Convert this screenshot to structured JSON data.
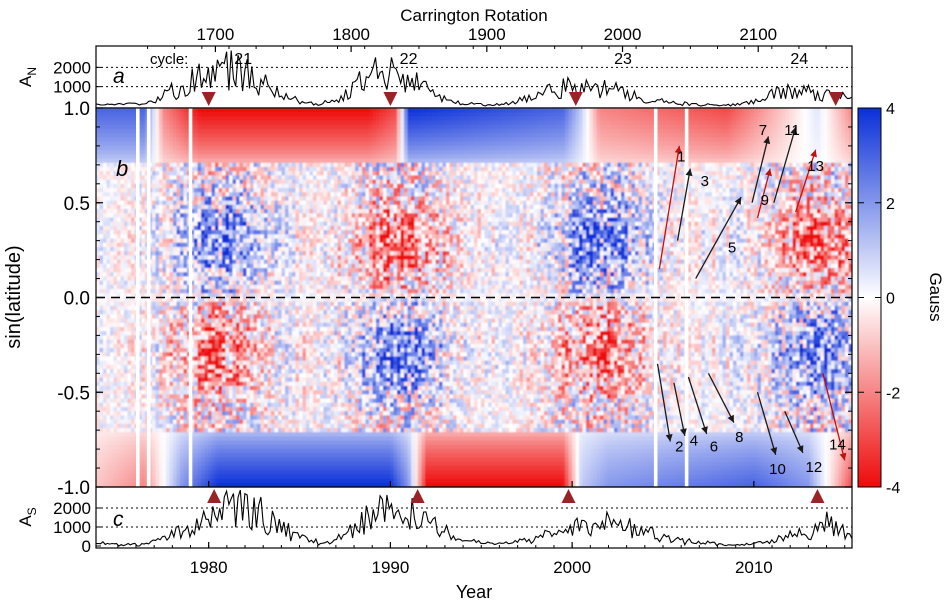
{
  "chart_data": [
    {
      "panel_label": "a",
      "type": "line",
      "ylabel": "A",
      "ylabel_sub": "N",
      "top_axis_label": "Carrington Rotation",
      "top_ticks": [
        "1700",
        "1800",
        "1900",
        "2000",
        "2100"
      ],
      "top_tick_rotations": [
        1700,
        1800,
        1900,
        2000,
        2100
      ],
      "yticks": [
        "2000",
        "1000"
      ],
      "ytick_values": [
        2000,
        1000
      ],
      "dotted_levels": [
        2000,
        1000
      ],
      "ylim": [
        0,
        3000
      ],
      "cycle_prefix": "cycle:",
      "cycles": [
        {
          "label": "21",
          "year": 1981.9
        },
        {
          "label": "22",
          "year": 1991.0
        },
        {
          "label": "23",
          "year": 2002.8
        },
        {
          "label": "24",
          "year": 2012.5
        }
      ],
      "reversal_markers_years": [
        1980.0,
        1990.0,
        2000.2,
        2014.5
      ],
      "marker_color": "#9b2226",
      "series": [
        {
          "key": "AN",
          "color": "#000000",
          "envelope": [
            [
              1974.0,
              80
            ],
            [
              1976.0,
              120
            ],
            [
              1977.0,
              250
            ],
            [
              1978.0,
              900
            ],
            [
              1979.0,
              1500
            ],
            [
              1980.0,
              1900
            ],
            [
              1981.0,
              2300
            ],
            [
              1982.0,
              1900
            ],
            [
              1983.0,
              1300
            ],
            [
              1984.0,
              700
            ],
            [
              1985.0,
              250
            ],
            [
              1986.0,
              120
            ],
            [
              1987.0,
              300
            ],
            [
              1988.0,
              1100
            ],
            [
              1989.0,
              2200
            ],
            [
              1990.0,
              2300
            ],
            [
              1991.0,
              1800
            ],
            [
              1992.0,
              900
            ],
            [
              1993.0,
              350
            ],
            [
              1994.0,
              150
            ],
            [
              1996.0,
              60
            ],
            [
              1997.0,
              250
            ],
            [
              1998.0,
              800
            ],
            [
              1999.0,
              1050
            ],
            [
              2000.0,
              1100
            ],
            [
              2001.0,
              1100
            ],
            [
              2002.0,
              1050
            ],
            [
              2003.0,
              850
            ],
            [
              2004.0,
              400
            ],
            [
              2005.0,
              250
            ],
            [
              2006.0,
              130
            ],
            [
              2008.0,
              40
            ],
            [
              2009.0,
              60
            ],
            [
              2010.0,
              250
            ],
            [
              2011.0,
              800
            ],
            [
              2012.0,
              1000
            ],
            [
              2013.0,
              850
            ],
            [
              2014.0,
              650
            ],
            [
              2015.3,
              400
            ]
          ]
        }
      ]
    },
    {
      "panel_label": "b",
      "type": "heatmap",
      "ylabel": "sin(latitude)",
      "yticks": [
        "1.0",
        "0.5",
        "0.0",
        "-0.5",
        "-1.0"
      ],
      "ytick_values": [
        1.0,
        0.5,
        0.0,
        -0.5,
        -1.0
      ],
      "xlim": [
        1973.8,
        2015.4
      ],
      "ylim": [
        -1.0,
        1.0
      ],
      "colorbar": {
        "label": "Gauss",
        "ticks": [
          "4",
          "2",
          "0",
          "-2",
          "-4"
        ],
        "tick_values": [
          4,
          2,
          0,
          -2,
          -4
        ],
        "range": [
          -4,
          4
        ],
        "colors": {
          "positive": "#0a2fd8",
          "zero": "#ffffff",
          "negative": "#ee0a0a"
        }
      },
      "polar_field": {
        "north": [
          [
            1974.0,
            3
          ],
          [
            1976.5,
            3
          ],
          [
            1977.5,
            -2
          ],
          [
            1979.5,
            -4
          ],
          [
            1980.5,
            -4
          ],
          [
            1988.8,
            -4
          ],
          [
            1990.3,
            -3
          ],
          [
            1991.0,
            4
          ],
          [
            1999.5,
            3
          ],
          [
            2000.5,
            1
          ],
          [
            2001.5,
            -2
          ],
          [
            2008.5,
            -3
          ],
          [
            2011.5,
            -1
          ],
          [
            2013.5,
            0.5
          ],
          [
            2015.4,
            -2
          ]
        ],
        "south": [
          [
            1974.0,
            -1
          ],
          [
            1976.5,
            -2
          ],
          [
            1978.5,
            2
          ],
          [
            1980.5,
            4
          ],
          [
            1990.0,
            4
          ],
          [
            1991.0,
            2
          ],
          [
            1992.0,
            -4
          ],
          [
            1999.5,
            -4
          ],
          [
            2000.5,
            1
          ],
          [
            2002.0,
            2
          ],
          [
            2010.0,
            3
          ],
          [
            2013.0,
            2
          ],
          [
            2014.5,
            -1
          ],
          [
            2015.4,
            -3
          ]
        ]
      },
      "data_gap_years": [
        1976.1,
        1976.7,
        1979.0,
        2004.6,
        2006.3
      ],
      "equator_line": "dashed",
      "surges": [
        {
          "label": "1",
          "hemisphere": "N",
          "tail": [
            2004.8,
            0.15
          ],
          "head": [
            2005.9,
            0.8
          ],
          "color": "#c01010",
          "label_pos": [
            2006.0,
            0.75
          ]
        },
        {
          "label": "3",
          "hemisphere": "N",
          "tail": [
            2005.8,
            0.3
          ],
          "head": [
            2006.5,
            0.68
          ],
          "color": "#1a1a1a",
          "label_pos": [
            2007.3,
            0.62
          ]
        },
        {
          "label": "5",
          "hemisphere": "N",
          "tail": [
            2006.8,
            0.1
          ],
          "head": [
            2009.3,
            0.53
          ],
          "color": "#1a1a1a",
          "label_pos": [
            2008.8,
            0.27
          ]
        },
        {
          "label": "7",
          "hemisphere": "N",
          "tail": [
            2009.9,
            0.5
          ],
          "head": [
            2010.8,
            0.85
          ],
          "color": "#1a1a1a",
          "label_pos": [
            2010.5,
            0.89
          ]
        },
        {
          "label": "9",
          "hemisphere": "N",
          "tail": [
            2010.2,
            0.42
          ],
          "head": [
            2010.9,
            0.68
          ],
          "color": "#c01010",
          "label_pos": [
            2010.6,
            0.52
          ]
        },
        {
          "label": "11",
          "hemisphere": "N",
          "tail": [
            2011.1,
            0.5
          ],
          "head": [
            2012.3,
            0.9
          ],
          "color": "#1a1a1a",
          "label_pos": [
            2012.1,
            0.89
          ]
        },
        {
          "label": "13",
          "hemisphere": "N",
          "tail": [
            2012.3,
            0.45
          ],
          "head": [
            2013.4,
            0.78
          ],
          "color": "#c01010",
          "label_pos": [
            2013.4,
            0.7
          ]
        },
        {
          "label": "2",
          "hemisphere": "S",
          "tail": [
            2004.7,
            -0.35
          ],
          "head": [
            2005.4,
            -0.76
          ],
          "color": "#1a1a1a",
          "label_pos": [
            2005.9,
            -0.78
          ]
        },
        {
          "label": "4",
          "hemisphere": "S",
          "tail": [
            2005.6,
            -0.45
          ],
          "head": [
            2006.2,
            -0.73
          ],
          "color": "#1a1a1a",
          "label_pos": [
            2006.7,
            -0.75
          ]
        },
        {
          "label": "6",
          "hemisphere": "S",
          "tail": [
            2006.4,
            -0.42
          ],
          "head": [
            2007.4,
            -0.72
          ],
          "color": "#1a1a1a",
          "label_pos": [
            2007.8,
            -0.78
          ]
        },
        {
          "label": "8",
          "hemisphere": "S",
          "tail": [
            2007.5,
            -0.4
          ],
          "head": [
            2008.9,
            -0.66
          ],
          "color": "#1a1a1a",
          "label_pos": [
            2009.2,
            -0.73
          ]
        },
        {
          "label": "10",
          "hemisphere": "S",
          "tail": [
            2010.2,
            -0.5
          ],
          "head": [
            2011.2,
            -0.83
          ],
          "color": "#1a1a1a",
          "label_pos": [
            2011.3,
            -0.9
          ]
        },
        {
          "label": "12",
          "hemisphere": "S",
          "tail": [
            2011.7,
            -0.6
          ],
          "head": [
            2012.7,
            -0.82
          ],
          "color": "#1a1a1a",
          "label_pos": [
            2013.3,
            -0.89
          ]
        },
        {
          "label": "14",
          "hemisphere": "S",
          "tail": [
            2013.8,
            -0.4
          ],
          "head": [
            2015.0,
            -0.86
          ],
          "color": "#c01010",
          "label_pos": [
            2014.6,
            -0.77
          ]
        }
      ]
    },
    {
      "panel_label": "c",
      "type": "line",
      "ylabel": "A",
      "ylabel_sub": "S",
      "xlabel": "Year",
      "xticks": [
        "1980",
        "1990",
        "2000",
        "2010"
      ],
      "xtick_values": [
        1980,
        1990,
        2000,
        2010
      ],
      "yticks": [
        "2000",
        "1000",
        "0"
      ],
      "ytick_values": [
        2000,
        1000,
        0
      ],
      "dotted_levels": [
        2000,
        1000
      ],
      "ylim": [
        0,
        3000
      ],
      "reversal_markers_years": [
        1980.3,
        1991.5,
        1999.8,
        2013.5
      ],
      "marker_color": "#9b2226",
      "series": [
        {
          "key": "AS",
          "color": "#000000",
          "envelope": [
            [
              1974.0,
              150
            ],
            [
              1975.5,
              80
            ],
            [
              1976.5,
              100
            ],
            [
              1977.5,
              400
            ],
            [
              1978.5,
              900
            ],
            [
              1979.5,
              1300
            ],
            [
              1980.5,
              1900
            ],
            [
              1981.5,
              2500
            ],
            [
              1982.5,
              2200
            ],
            [
              1983.5,
              1600
            ],
            [
              1984.5,
              800
            ],
            [
              1985.5,
              300
            ],
            [
              1986.5,
              150
            ],
            [
              1987.5,
              700
            ],
            [
              1988.5,
              1500
            ],
            [
              1989.5,
              2000
            ],
            [
              1990.5,
              2300
            ],
            [
              1991.5,
              2400
            ],
            [
              1992.5,
              1300
            ],
            [
              1993.5,
              500
            ],
            [
              1994.5,
              250
            ],
            [
              1996.0,
              100
            ],
            [
              1997.5,
              300
            ],
            [
              1998.5,
              600
            ],
            [
              1999.5,
              900
            ],
            [
              2000.5,
              1100
            ],
            [
              2001.5,
              1500
            ],
            [
              2002.5,
              1300
            ],
            [
              2003.5,
              1000
            ],
            [
              2004.5,
              700
            ],
            [
              2005.5,
              400
            ],
            [
              2007.0,
              200
            ],
            [
              2009.0,
              60
            ],
            [
              2010.0,
              150
            ],
            [
              2011.0,
              300
            ],
            [
              2012.0,
              600
            ],
            [
              2013.0,
              900
            ],
            [
              2014.0,
              1500
            ],
            [
              2015.3,
              700
            ]
          ]
        }
      ]
    }
  ]
}
